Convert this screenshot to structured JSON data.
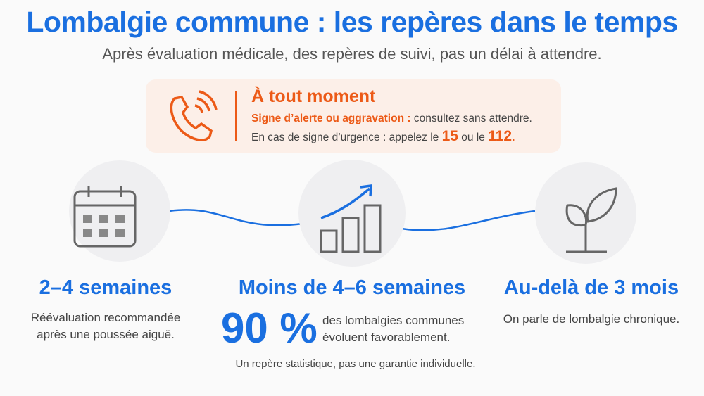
{
  "header": {
    "title": "Lombalgie commune : les repères dans le temps",
    "subtitle": "Après évaluation médicale, des repères de suivi, pas un délai à attendre."
  },
  "alert": {
    "title": "À tout moment",
    "line1_strong": "Signe d’alerte ou aggravation :",
    "line1_rest": "consultez sans attendre.",
    "line2": [
      "En cas de signe d’urgence : appelez le",
      "15",
      "ou le",
      "112",
      "."
    ]
  },
  "steps": [
    {
      "heading": "2–4 semaines",
      "lines": [
        "Réévaluation recommandée",
        "après une poussée aiguë."
      ]
    },
    {
      "heading": "Moins de 4–6 semaines",
      "stat": "90 %",
      "stat_lines": [
        "des lombalgies communes",
        "évoluent favorablement."
      ],
      "note": "Un repère statistique, pas une garantie individuelle."
    },
    {
      "heading": "Au-delà de 3 mois",
      "lines": [
        "On parle de lombalgie chronique."
      ]
    }
  ]
}
